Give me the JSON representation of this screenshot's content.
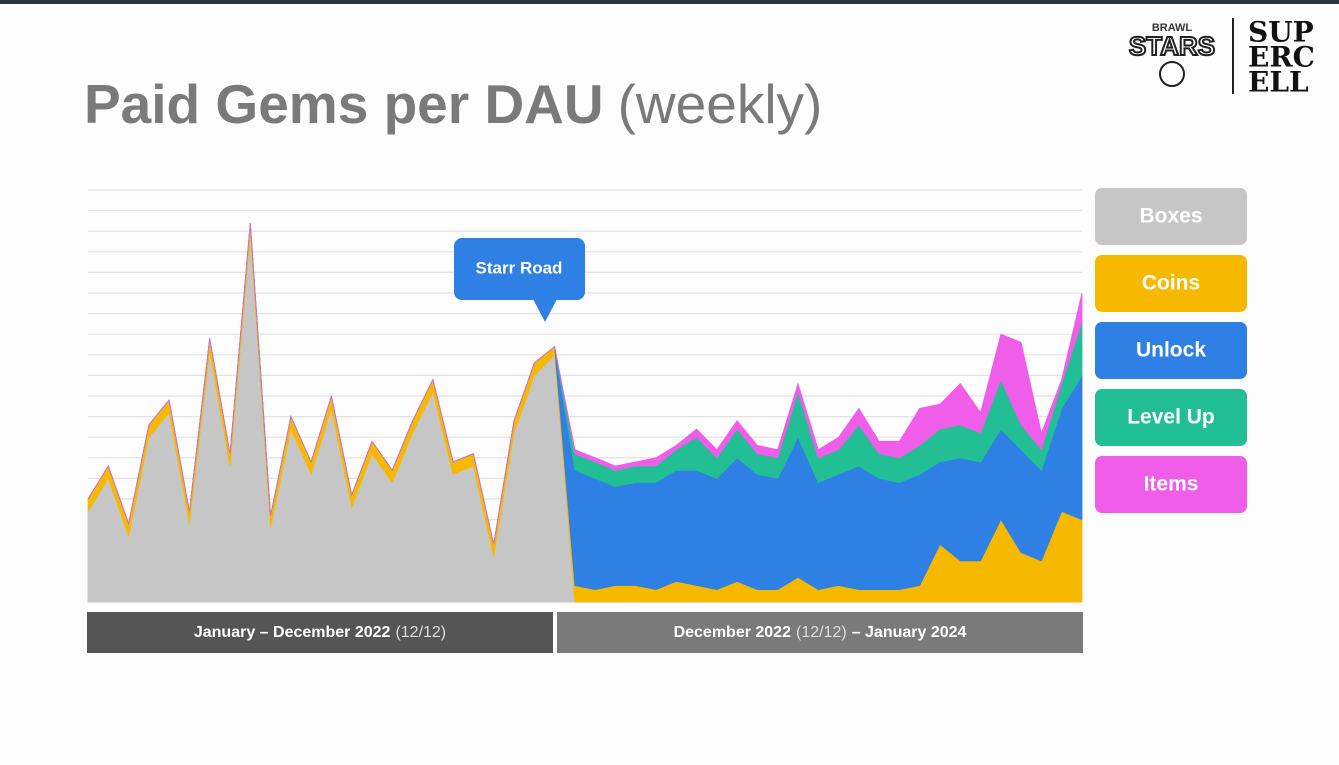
{
  "chart_data": {
    "type": "stacked_area",
    "title": "Paid Gems per DAU",
    "subtitle": "(weekly)",
    "categories": [
      null,
      null,
      null,
      null,
      null,
      null,
      null,
      null,
      null,
      null,
      null,
      null,
      null,
      null,
      null,
      null,
      null,
      null,
      null,
      null,
      null,
      null,
      null,
      null,
      null,
      null,
      null,
      null,
      null,
      null,
      null,
      null,
      null,
      null,
      null,
      null,
      null,
      null,
      null,
      null,
      null,
      null,
      null,
      null,
      null,
      null,
      null,
      null,
      null,
      null
    ],
    "series": [
      {
        "name": "Boxes",
        "color": "#c6c6c6",
        "values": [
          22,
          30,
          16,
          40,
          46,
          19,
          61,
          33,
          89,
          18,
          42,
          31,
          47,
          23,
          36,
          29,
          41,
          51,
          31,
          33,
          11,
          41,
          55,
          60,
          0,
          0,
          0,
          0,
          0,
          0,
          0,
          0,
          0,
          0,
          0,
          0,
          0,
          0,
          0,
          0,
          0,
          0,
          0,
          0,
          0,
          0,
          0,
          0,
          0,
          0
        ]
      },
      {
        "name": "Coins",
        "color": "#f7b900",
        "values": [
          3,
          3,
          3,
          3,
          3,
          3,
          3,
          3,
          3,
          3,
          3,
          3,
          3,
          3,
          3,
          3,
          3,
          3,
          3,
          3,
          3,
          3,
          3,
          2,
          4,
          3,
          4,
          4,
          3,
          5,
          4,
          3,
          5,
          3,
          3,
          6,
          3,
          4,
          3,
          3,
          3,
          4,
          14,
          10,
          10,
          20,
          12,
          10,
          22,
          20
        ]
      },
      {
        "name": "Unlock",
        "color": "#2f80e4",
        "values": [
          0,
          0,
          0,
          0,
          0,
          0,
          0,
          0,
          0,
          0,
          0,
          0,
          0,
          0,
          0,
          0,
          0,
          0,
          0,
          0,
          0,
          0,
          0,
          0,
          28,
          27,
          24,
          25,
          26,
          27,
          28,
          27,
          30,
          28,
          27,
          34,
          26,
          27,
          30,
          27,
          26,
          27,
          20,
          25,
          24,
          22,
          25,
          22,
          25,
          35
        ]
      },
      {
        "name": "Level Up",
        "color": "#22bf95",
        "values": [
          0,
          0,
          0,
          0,
          0,
          0,
          0,
          0,
          0,
          0,
          0,
          0,
          0,
          0,
          0,
          0,
          0,
          0,
          0,
          0,
          0,
          0,
          0,
          0,
          4,
          4,
          4,
          4,
          4,
          5,
          8,
          5,
          7,
          5,
          5,
          11,
          6,
          6,
          10,
          6,
          6,
          7,
          8,
          8,
          7,
          12,
          6,
          5,
          6,
          13
        ]
      },
      {
        "name": "Items",
        "color": "#ef5de9",
        "values": [
          0,
          0,
          0,
          0,
          0,
          0,
          0,
          0,
          0,
          0,
          0,
          0,
          0,
          0,
          0,
          0,
          0,
          0,
          0,
          0,
          0,
          0,
          0,
          0,
          1,
          1,
          1,
          1,
          2,
          1,
          2,
          2,
          2,
          2,
          2,
          2,
          2,
          3,
          4,
          3,
          4,
          9,
          6,
          10,
          5,
          11,
          20,
          4,
          1,
          7
        ]
      }
    ],
    "ylim": [
      0,
      100
    ],
    "yticks": [
      0,
      5,
      10,
      15,
      20,
      25,
      30,
      35,
      40,
      45,
      50,
      55,
      60,
      65,
      70,
      75,
      80,
      85,
      90,
      95,
      100
    ],
    "grid": true,
    "legend": "right",
    "annotation": "Starr Road",
    "periods": [
      {
        "label": "January – December 2022",
        "note": "(12/12)"
      },
      {
        "label": "December 2022",
        "note": "(12/12)",
        "end": "– January 2024"
      }
    ],
    "logos": {
      "game": [
        "BRAWL",
        "STARS"
      ],
      "publisher": [
        "SUP",
        "ERC",
        "ELL"
      ]
    }
  }
}
